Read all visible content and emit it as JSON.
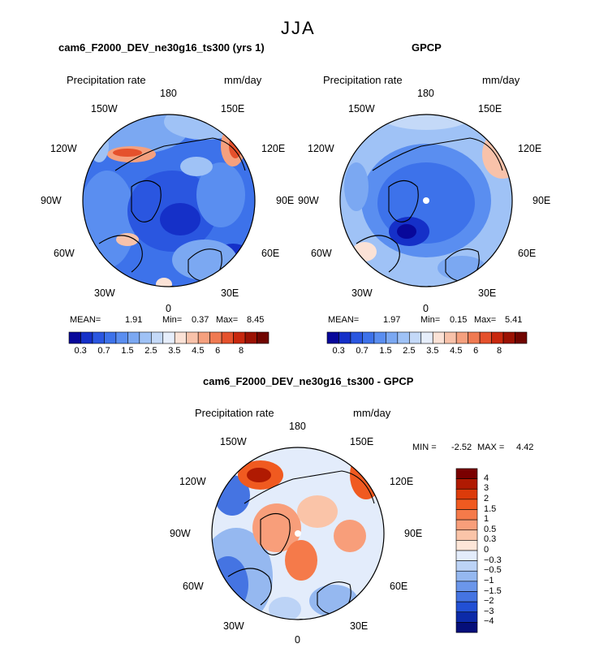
{
  "season": "JJA",
  "panels": [
    {
      "title": "cam6_F2000_DEV_ne30g16_ts300 (yrs 1)",
      "variable": "Precipitation rate",
      "units": "mm/day",
      "lon_labels": [
        "180",
        "150E",
        "120E",
        "90E",
        "60E",
        "30E",
        "0",
        "30W",
        "60W",
        "90W",
        "120W",
        "150W"
      ],
      "stats": {
        "mean_label": "MEAN=",
        "mean": "1.91",
        "min_label": "Min=",
        "min": "0.37",
        "max_label": "Max=",
        "max": "8.45"
      },
      "colorbar_ticks": [
        "0.3",
        "0.7",
        "1.5",
        "2.5",
        "3.5",
        "4.5",
        "6",
        "8"
      ]
    },
    {
      "title": "GPCP",
      "variable": "Precipitation rate",
      "units": "mm/day",
      "lon_labels": [
        "180",
        "150E",
        "120E",
        "90E",
        "60E",
        "30E",
        "0",
        "30W",
        "60W",
        "90W",
        "120W",
        "150W"
      ],
      "stats": {
        "mean_label": "MEAN=",
        "mean": "1.97",
        "min_label": "Min=",
        "min": "0.15",
        "max_label": "Max=",
        "max": "5.41"
      },
      "colorbar_ticks": [
        "0.3",
        "0.7",
        "1.5",
        "2.5",
        "3.5",
        "4.5",
        "6",
        "8"
      ]
    },
    {
      "title": "cam6_F2000_DEV_ne30g16_ts300 - GPCP",
      "variable": "Precipitation rate",
      "units": "mm/day",
      "lon_labels": [
        "180",
        "150E",
        "120E",
        "90E",
        "60E",
        "30E",
        "0",
        "30W",
        "60W",
        "90W",
        "120W",
        "150W"
      ],
      "stats": {
        "min_label": "MIN =",
        "min": "-2.52",
        "max_label": "MAX =",
        "max": "4.42"
      },
      "colorbar_ticks": [
        "4",
        "3",
        "2",
        "1.5",
        "1",
        "0.5",
        "0.3",
        "0",
        "−0.3",
        "−0.5",
        "−1",
        "−1.5",
        "−2",
        "−3",
        "−4"
      ]
    }
  ],
  "colors": {
    "seq": [
      "#08089a",
      "#1530c8",
      "#2a56e0",
      "#3d72ea",
      "#5a8ef0",
      "#7ba8f2",
      "#9fc2f6",
      "#c4d9f8",
      "#e6eefb",
      "#fbe2d6",
      "#f8c2aa",
      "#f5a07e",
      "#ef7a52",
      "#e5512c",
      "#c8280e",
      "#9b1203",
      "#700500"
    ],
    "diff": [
      "#7a0000",
      "#b01a02",
      "#dc3b0a",
      "#f05a20",
      "#f57a4a",
      "#f89e7a",
      "#fac4a8",
      "#fde6d8",
      "#e3ecfb",
      "#bcd3f6",
      "#95b8f0",
      "#6b96ea",
      "#4574e2",
      "#2250d4",
      "#0c2aa8",
      "#050f7a"
    ]
  }
}
